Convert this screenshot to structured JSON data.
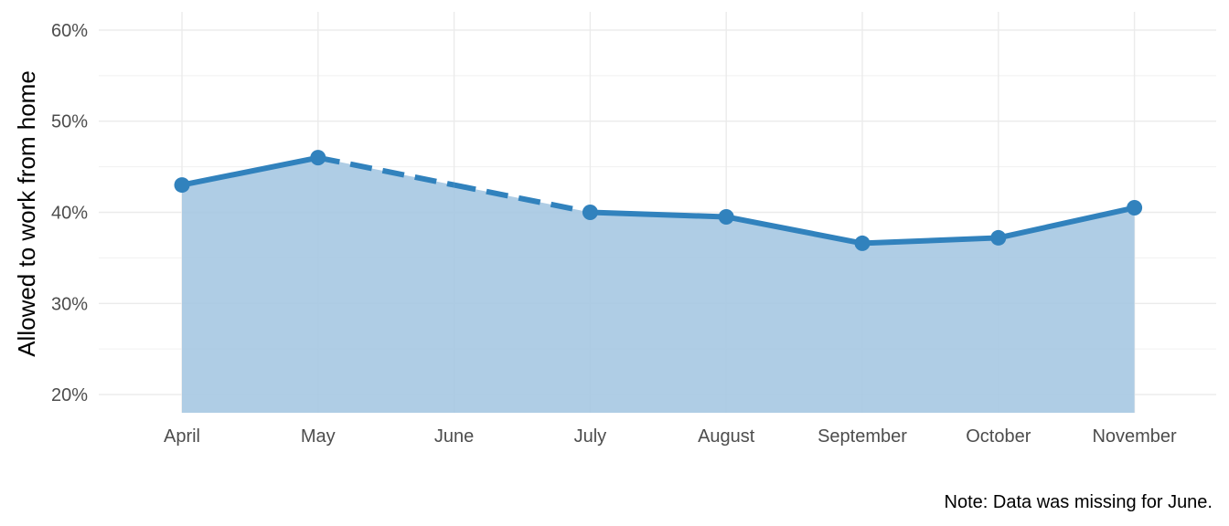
{
  "chart_data": {
    "type": "area",
    "categories": [
      "April",
      "May",
      "June",
      "July",
      "August",
      "September",
      "October",
      "November"
    ],
    "series": [
      {
        "values": [
          0.43,
          0.46,
          null,
          0.4,
          0.395,
          0.366,
          0.372,
          0.405
        ],
        "color": "#3182bd"
      }
    ],
    "interpolated": {
      "category": "June",
      "value": 0.43,
      "line_style": "dashed"
    },
    "ylabel": "Allowed to work from home",
    "ylim": [
      0.18,
      0.62
    ],
    "y_ticks": [
      0.2,
      0.3,
      0.4,
      0.5,
      0.6
    ],
    "y_tick_format": "percent",
    "area_baseline": 0.18,
    "area_color": "#a6c8e2",
    "grid": true,
    "caption": "Note: Data was missing for June."
  }
}
